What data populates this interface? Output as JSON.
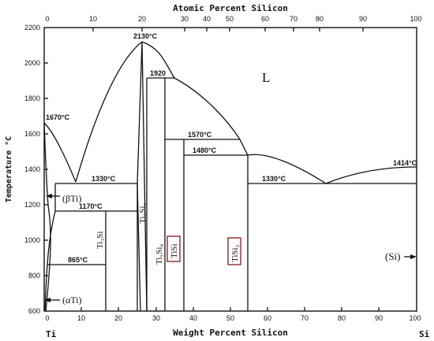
{
  "axes": {
    "top_title": "Atomic Percent Silicon",
    "bottom_title": "Weight Percent Silicon",
    "y_title": "Temperature °C",
    "left_element": "Ti",
    "right_element": "Si",
    "top_ticks": [
      "0",
      "10",
      "20",
      "30",
      "40",
      "50",
      "60",
      "70",
      "80",
      "90",
      "100"
    ],
    "bottom_ticks": [
      "0",
      "10",
      "20",
      "30",
      "40",
      "50",
      "60",
      "70",
      "80",
      "90",
      "100"
    ],
    "y_ticks": [
      "600",
      "800",
      "1000",
      "1200",
      "1400",
      "1600",
      "1800",
      "2000",
      "2200"
    ]
  },
  "temperatures": {
    "t1670": "1670°C",
    "t2130": "2130°C",
    "t1920": "1920",
    "t1570": "1570°C",
    "t1480": "1480°C",
    "t1414": "1414°C",
    "t1330_left": "1330°C",
    "t1330_right": "1330°C",
    "t1170": "1170°C",
    "t865": "865°C"
  },
  "phases": {
    "liquid": "L",
    "beta_ti": "(βTi)",
    "alpha_ti": "(αTi)",
    "si": "(Si)",
    "ti3si": "Ti₃Si",
    "ti5si3": "Ti₅Si₃",
    "ti5si4": "Ti₅Si₄",
    "tisi": "TiSi",
    "tisi2": "TiSi₂"
  },
  "chart_data": {
    "type": "phase-diagram",
    "system": "Ti-Si",
    "xlabel": "Weight Percent Silicon",
    "x2label": "Atomic Percent Silicon",
    "ylabel": "Temperature °C",
    "xlim": [
      0,
      100
    ],
    "ylim": [
      600,
      2200
    ],
    "invariants": [
      {
        "label": "1670°C",
        "x": 0,
        "y": 1670
      },
      {
        "label": "2130°C",
        "x": 26.5,
        "y": 2130
      },
      {
        "label": "1920",
        "x": 32,
        "y": 1920
      },
      {
        "label": "1570°C",
        "x": 37,
        "y": 1570
      },
      {
        "label": "1480°C",
        "x": 37,
        "y": 1480
      },
      {
        "label": "1414°C",
        "x": 100,
        "y": 1414
      },
      {
        "label": "1330°C",
        "x": 8.5,
        "y": 1330
      },
      {
        "label": "1330°C",
        "x": 75,
        "y": 1330
      },
      {
        "label": "1170°C",
        "x": 16.3,
        "y": 1170
      },
      {
        "label": "865°C",
        "x": 16.3,
        "y": 865
      }
    ],
    "phases": [
      "L",
      "(βTi)",
      "(αTi)",
      "(Si)",
      "Ti₃Si",
      "Ti₅Si₃",
      "Ti₅Si₄",
      "TiSi",
      "TiSi₂"
    ]
  }
}
